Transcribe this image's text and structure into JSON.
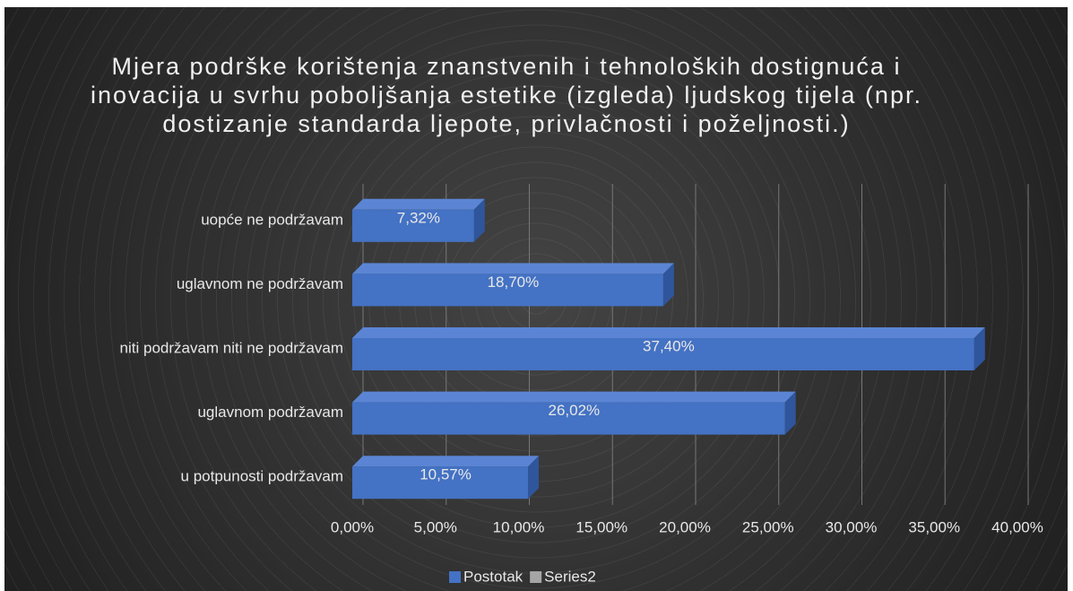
{
  "chart_data": {
    "type": "bar",
    "orientation": "horizontal",
    "title": "Mjera podrške korištenja znanstvenih i tehnoloških dostignuća i inovacija u svrhu poboljšanja estetike (izgleda) ljudskog tijela (npr. dostizanje standarda ljepote, privlačnosti i poželjnosti.)",
    "categories": [
      "uopće ne podržavam",
      "uglavnom ne podržavam",
      "niti podržavam niti ne podržavam",
      "uglavnom podržavam",
      "u potpunosti podržavam"
    ],
    "series": [
      {
        "name": "Postotak",
        "color": "#4472c4",
        "values": [
          7.32,
          18.7,
          37.4,
          26.02,
          10.57
        ],
        "value_labels": [
          "7,32%",
          "18,70%",
          "37,40%",
          "26,02%",
          "10,57%"
        ]
      },
      {
        "name": "Series2",
        "color": "#a5a5a5",
        "values": [
          null,
          null,
          null,
          null,
          null
        ]
      }
    ],
    "xlim": [
      0,
      40
    ],
    "xticks": [
      {
        "value": 0,
        "label": "0,00%"
      },
      {
        "value": 5,
        "label": "5,00%"
      },
      {
        "value": 10,
        "label": "10,00%"
      },
      {
        "value": 15,
        "label": "15,00%"
      },
      {
        "value": 20,
        "label": "20,00%"
      },
      {
        "value": 25,
        "label": "25,00%"
      },
      {
        "value": 30,
        "label": "30,00%"
      },
      {
        "value": 35,
        "label": "35,00%"
      },
      {
        "value": 40,
        "label": "40,00%"
      }
    ],
    "grid": true,
    "legend": "bottom"
  }
}
